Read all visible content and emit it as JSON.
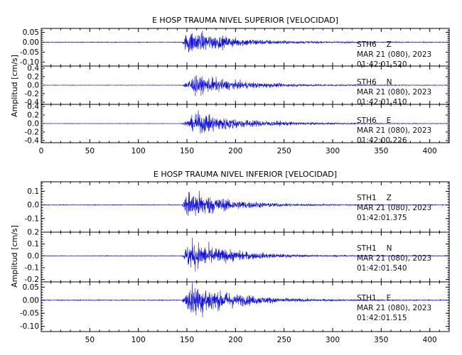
{
  "colors": {
    "trace": "#1010e0",
    "axis": "#000000",
    "background": "#ffffff"
  },
  "chart_data": [
    {
      "type": "line",
      "title": "E HOSP TRAUMA NIVEL SUPERIOR [VELOCIDAD]",
      "ylabel": "Amplitud [cm/s]",
      "xlim": [
        0,
        420
      ],
      "x_ticks": [
        "0",
        "50",
        "100",
        "150",
        "200",
        "250",
        "300",
        "350",
        "400"
      ],
      "show_x_tick_labels": true,
      "series": [
        {
          "station": "STH6",
          "component": "Z",
          "date": "MAR 21 (080), 2023",
          "time": "01:42:01.520",
          "ylim": [
            -0.12,
            0.07
          ],
          "y_ticks": [
            "0.05",
            "0.00",
            "-0.05",
            "-0.10"
          ],
          "y_tick_values": [
            0.05,
            0.0,
            -0.05,
            -0.1
          ],
          "onset": 145,
          "peak_time": 152,
          "peak_amp": 0.09,
          "noise": 0.002,
          "decay": 45
        },
        {
          "station": "STH6",
          "component": "N",
          "date": "MAR 21 (080), 2023",
          "time": "01:42:01.410",
          "ylim": [
            -0.45,
            0.45
          ],
          "y_ticks": [
            "0.4",
            "0.2",
            "0.0",
            "-0.2",
            "-0.4"
          ],
          "y_tick_values": [
            0.4,
            0.2,
            0.0,
            -0.2,
            -0.4
          ],
          "onset": 145,
          "peak_time": 158,
          "peak_amp": 0.32,
          "noise": 0.006,
          "decay": 50
        },
        {
          "station": "STH6",
          "component": "E",
          "date": "MAR 21 (080), 2023",
          "time": "01:42:00.226",
          "ylim": [
            -0.45,
            0.45
          ],
          "y_ticks": [
            "0.4",
            "0.2",
            "0.0",
            "-0.2",
            "-0.4"
          ],
          "y_tick_values": [
            0.4,
            0.2,
            0.0,
            -0.2,
            -0.4
          ],
          "onset": 145,
          "peak_time": 162,
          "peak_amp": 0.36,
          "noise": 0.006,
          "decay": 50
        }
      ]
    },
    {
      "type": "line",
      "title": "E HOSP TRAUMA NIVEL INFERIOR [VELOCIDAD]",
      "ylabel": "Amplitud [cm/s]",
      "xlim": [
        0,
        420
      ],
      "x_ticks": [
        "50",
        "100",
        "150",
        "200",
        "250",
        "300",
        "350",
        "400"
      ],
      "show_x_tick_labels": true,
      "series": [
        {
          "station": "STH1",
          "component": "Z",
          "date": "MAR 21 (080), 2023",
          "time": "01:42:01.375",
          "ylim": [
            -0.2,
            0.17
          ],
          "y_ticks": [
            "0.1",
            "0.0",
            "-0.1"
          ],
          "y_tick_values": [
            0.1,
            0.0,
            -0.1
          ],
          "onset": 145,
          "peak_time": 152,
          "peak_amp": 0.16,
          "noise": 0.003,
          "decay": 40
        },
        {
          "station": "STH1",
          "component": "N",
          "date": "MAR 21 (080), 2023",
          "time": "01:42:01.540",
          "ylim": [
            -0.22,
            0.2
          ],
          "y_ticks": [
            "0.2",
            "0.1",
            "0.0",
            "-0.1",
            "-0.2"
          ],
          "y_tick_values": [
            0.2,
            0.1,
            0.0,
            -0.1,
            -0.2
          ],
          "onset": 145,
          "peak_time": 153,
          "peak_amp": 0.18,
          "noise": 0.003,
          "decay": 42
        },
        {
          "station": "STH1",
          "component": "E",
          "date": "MAR 21 (080), 2023",
          "time": "01:42:01.515",
          "ylim": [
            -0.12,
            0.07
          ],
          "y_ticks": [
            "0.05",
            "0.00",
            "-0.05",
            "-0.10"
          ],
          "y_tick_values": [
            0.05,
            0.0,
            -0.05,
            -0.1
          ],
          "onset": 145,
          "peak_time": 155,
          "peak_amp": 0.1,
          "noise": 0.002,
          "decay": 42
        }
      ]
    }
  ]
}
